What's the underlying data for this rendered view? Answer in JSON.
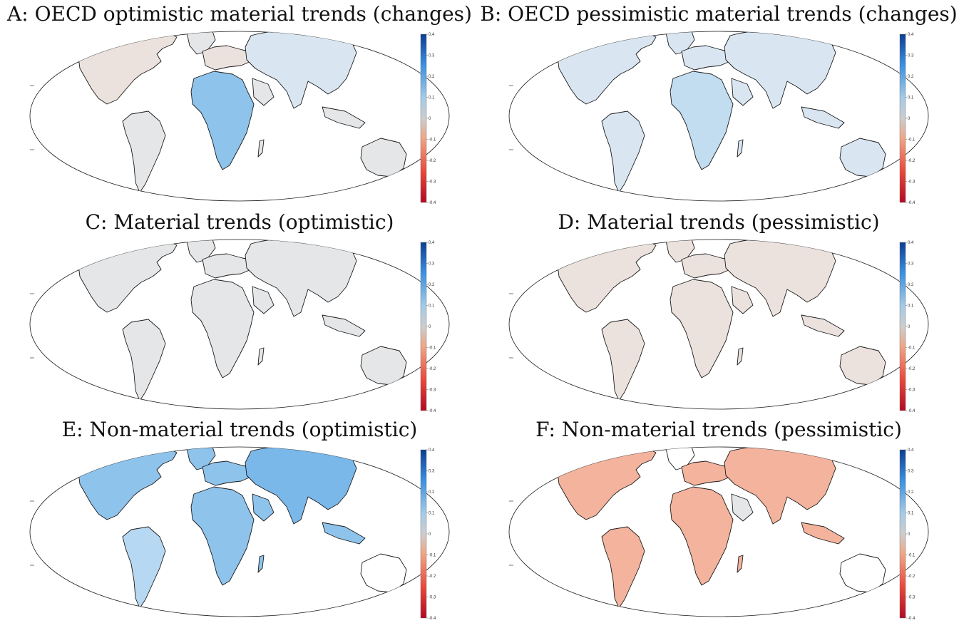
{
  "panels": [
    {
      "id": "A",
      "title": "A: OECD optimistic material trends (changes)",
      "pattern": "mixed-blue"
    },
    {
      "id": "B",
      "title": "B: OECD pessimistic material trends (changes)",
      "pattern": "pale-blue"
    },
    {
      "id": "C",
      "title": "C: Material trends (optimistic)",
      "pattern": "pale-grey"
    },
    {
      "id": "D",
      "title": "D: Material trends (pessimistic)",
      "pattern": "pale-tan"
    },
    {
      "id": "E",
      "title": "E: Non-material trends (optimistic)",
      "pattern": "blue"
    },
    {
      "id": "F",
      "title": "F: Non-material trends (pessimistic)",
      "pattern": "red"
    }
  ],
  "colorbar": {
    "ticks": [
      "0.4",
      "0.3",
      "0.2",
      "0.1",
      "0",
      "-0.1",
      "-0.2",
      "-0.3",
      "-0.4"
    ],
    "colors": {
      "max": "#0b3d91",
      "high": "#3a8fe0",
      "mid_high": "#a6cbe6",
      "zero": "#cdcdcd",
      "mid_low": "#f0a585",
      "low": "#e8473a",
      "min": "#b30a24"
    }
  },
  "colors": {
    "coast": "#1a1a1a",
    "ocean": "#ffffff",
    "blue": "#8ec3ec",
    "pale_blue": "#d9e6f1",
    "grey": "#e4e6e8",
    "tan": "#ebe2de",
    "red": "#f3b39d"
  }
}
